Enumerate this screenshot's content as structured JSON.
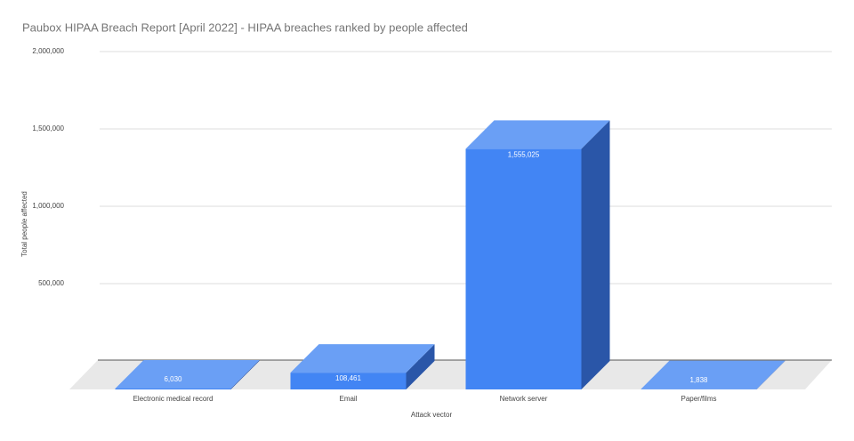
{
  "chart_data": {
    "type": "bar3d",
    "title": "Paubox HIPAA Breach Report [April 2022] - HIPAA breaches ranked by people affected",
    "x_label": "Attack vector",
    "y_label": "Total people affected",
    "categories": [
      "Electronic medical record",
      "Email",
      "Network server",
      "Paper/films"
    ],
    "values": [
      6030,
      108461,
      1555025,
      1838
    ],
    "value_labels": [
      "6,030",
      "108,461",
      "1,555,025",
      "1,838"
    ],
    "color": "#4285f4",
    "ylim": [
      0,
      2000000
    ],
    "yticks": [
      {
        "value": 500000,
        "label": "500,000"
      },
      {
        "value": 1000000,
        "label": "1,000,000"
      },
      {
        "value": 1500000,
        "label": "1,500,000"
      },
      {
        "value": 2000000,
        "label": "2,000,000"
      }
    ],
    "grid": true
  }
}
